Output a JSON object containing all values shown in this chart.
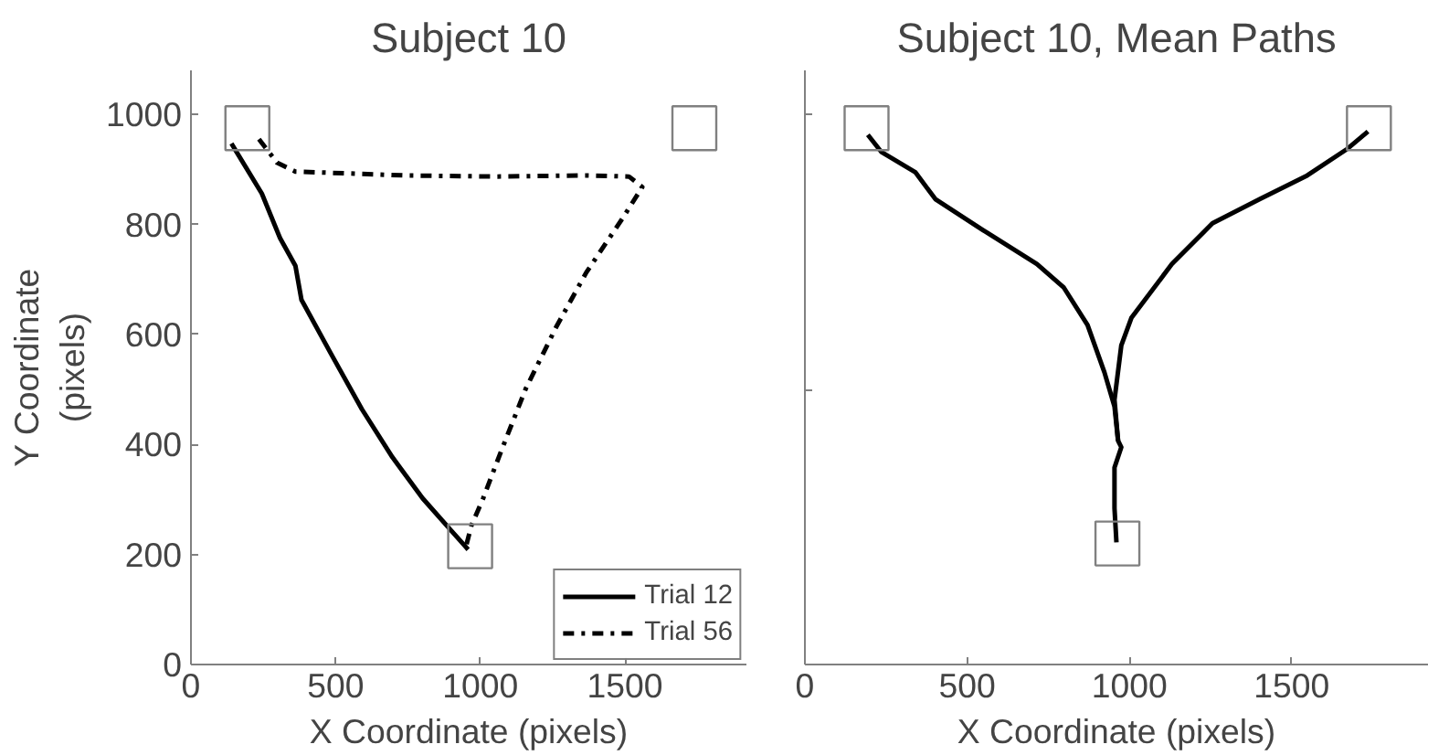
{
  "chart_data": [
    {
      "type": "line",
      "title": "Subject 10",
      "xlabel": "X Coordinate (pixels)",
      "ylabel": "Y Coordinate\n(pixels)",
      "xlim": [
        0,
        1920
      ],
      "ylim": [
        0,
        1080
      ],
      "xticks": [
        0,
        500,
        1000,
        1500
      ],
      "yticks": [
        0,
        200,
        400,
        600,
        800,
        1000
      ],
      "grid": false,
      "legend": "bottom right",
      "series": [
        {
          "name": "Trial 12",
          "color": "#000000",
          "line_style": "solid",
          "x": [
            140,
            245,
            308,
            361,
            382,
            486,
            591,
            696,
            801,
            895,
            958
          ],
          "values": [
            947,
            856,
            775,
            725,
            663,
            563,
            464,
            377,
            302,
            246,
            209
          ]
        },
        {
          "name": "Trial 56",
          "color": "#000000",
          "line_style": "dashdot",
          "x": [
            235,
            298,
            361,
            528,
            738,
            1052,
            1367,
            1514,
            1560,
            1493,
            1367,
            1262,
            1157,
            1073,
            1010,
            969,
            948
          ],
          "values": [
            955,
            912,
            896,
            893,
            889,
            887,
            889,
            887,
            868,
            812,
            713,
            613,
            501,
            389,
            302,
            252,
            209
          ]
        },
        {
          "type": "scatter",
          "marker": "square",
          "color": "#808080",
          "x": [
            195,
            1740,
            965
          ],
          "values": [
            975,
            975,
            215
          ]
        }
      ]
    },
    {
      "type": "line",
      "title": "Subject 10, Mean Paths",
      "xlabel": "X Coordinate (pixels)",
      "xlim": [
        0,
        1920
      ],
      "ylim": [
        0,
        1080
      ],
      "xticks": [
        0,
        500,
        1000,
        1500
      ],
      "yticks": [
        {
          "value": 0,
          "label": null
        },
        {
          "value": 500,
          "label": null
        },
        {
          "value": 1000,
          "label": null
        }
      ],
      "tick_labels": "x",
      "grid": false,
      "series": [
        {
          "color": "#000000",
          "line_style": "solid",
          "x": [
            194,
            235,
            340,
            402,
            548,
            715,
            798,
            871,
            923,
            954,
            965,
            975,
            954,
            954,
            960
          ],
          "values": [
            963,
            932,
            895,
            846,
            790,
            728,
            685,
            617,
            531,
            469,
            407,
            395,
            358,
            284,
            222
          ]
        },
        {
          "color": "#000000",
          "line_style": "solid",
          "x": [
            1735,
            1673,
            1548,
            1402,
            1256,
            1131,
            1006,
            975,
            954,
            965
          ],
          "values": [
            969,
            938,
            889,
            846,
            802,
            728,
            630,
            580,
            481,
            407
          ]
        },
        {
          "type": "scatter",
          "marker": "square",
          "color": "#808080",
          "x": [
            190,
            1738,
            963
          ],
          "values": [
            975,
            975,
            220
          ]
        }
      ]
    }
  ]
}
